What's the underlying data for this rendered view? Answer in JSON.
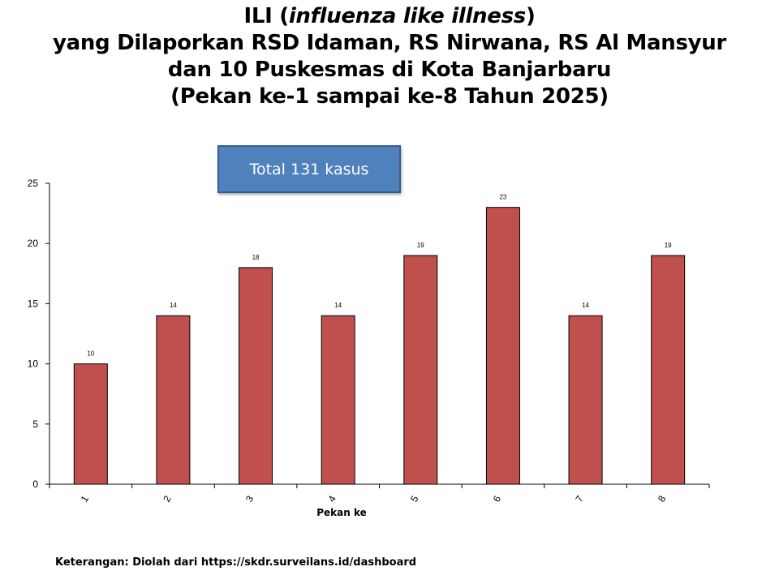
{
  "title": {
    "line1_prefix": "ILI (",
    "line1_italic": "influenza like illness",
    "line1_suffix": ")",
    "line2": "yang Dilaporkan RSD Idaman, RS Nirwana, RS Al Mansyur",
    "line3": "dan 10 Puskesmas di Kota Banjarbaru",
    "line4": "(Pekan ke-1 sampai ke-8 Tahun 2025)"
  },
  "total_box": "Total 131 kasus",
  "footnote": "Keterangan: Diolah dari https://skdr.surveilans.id/dashboard",
  "colors": {
    "bar": "#c0504d",
    "box": "#4f81bd"
  },
  "chart_data": {
    "type": "bar",
    "categories": [
      "1",
      "2",
      "3",
      "4",
      "5",
      "6",
      "7",
      "8"
    ],
    "values": [
      10,
      14,
      18,
      14,
      19,
      23,
      14,
      19
    ],
    "xlabel": "Pekan ke",
    "ylabel": "",
    "ylim": [
      0,
      25
    ],
    "yticks": [
      0,
      5,
      10,
      15,
      20,
      25
    ],
    "grid": false,
    "data_labels": true
  }
}
